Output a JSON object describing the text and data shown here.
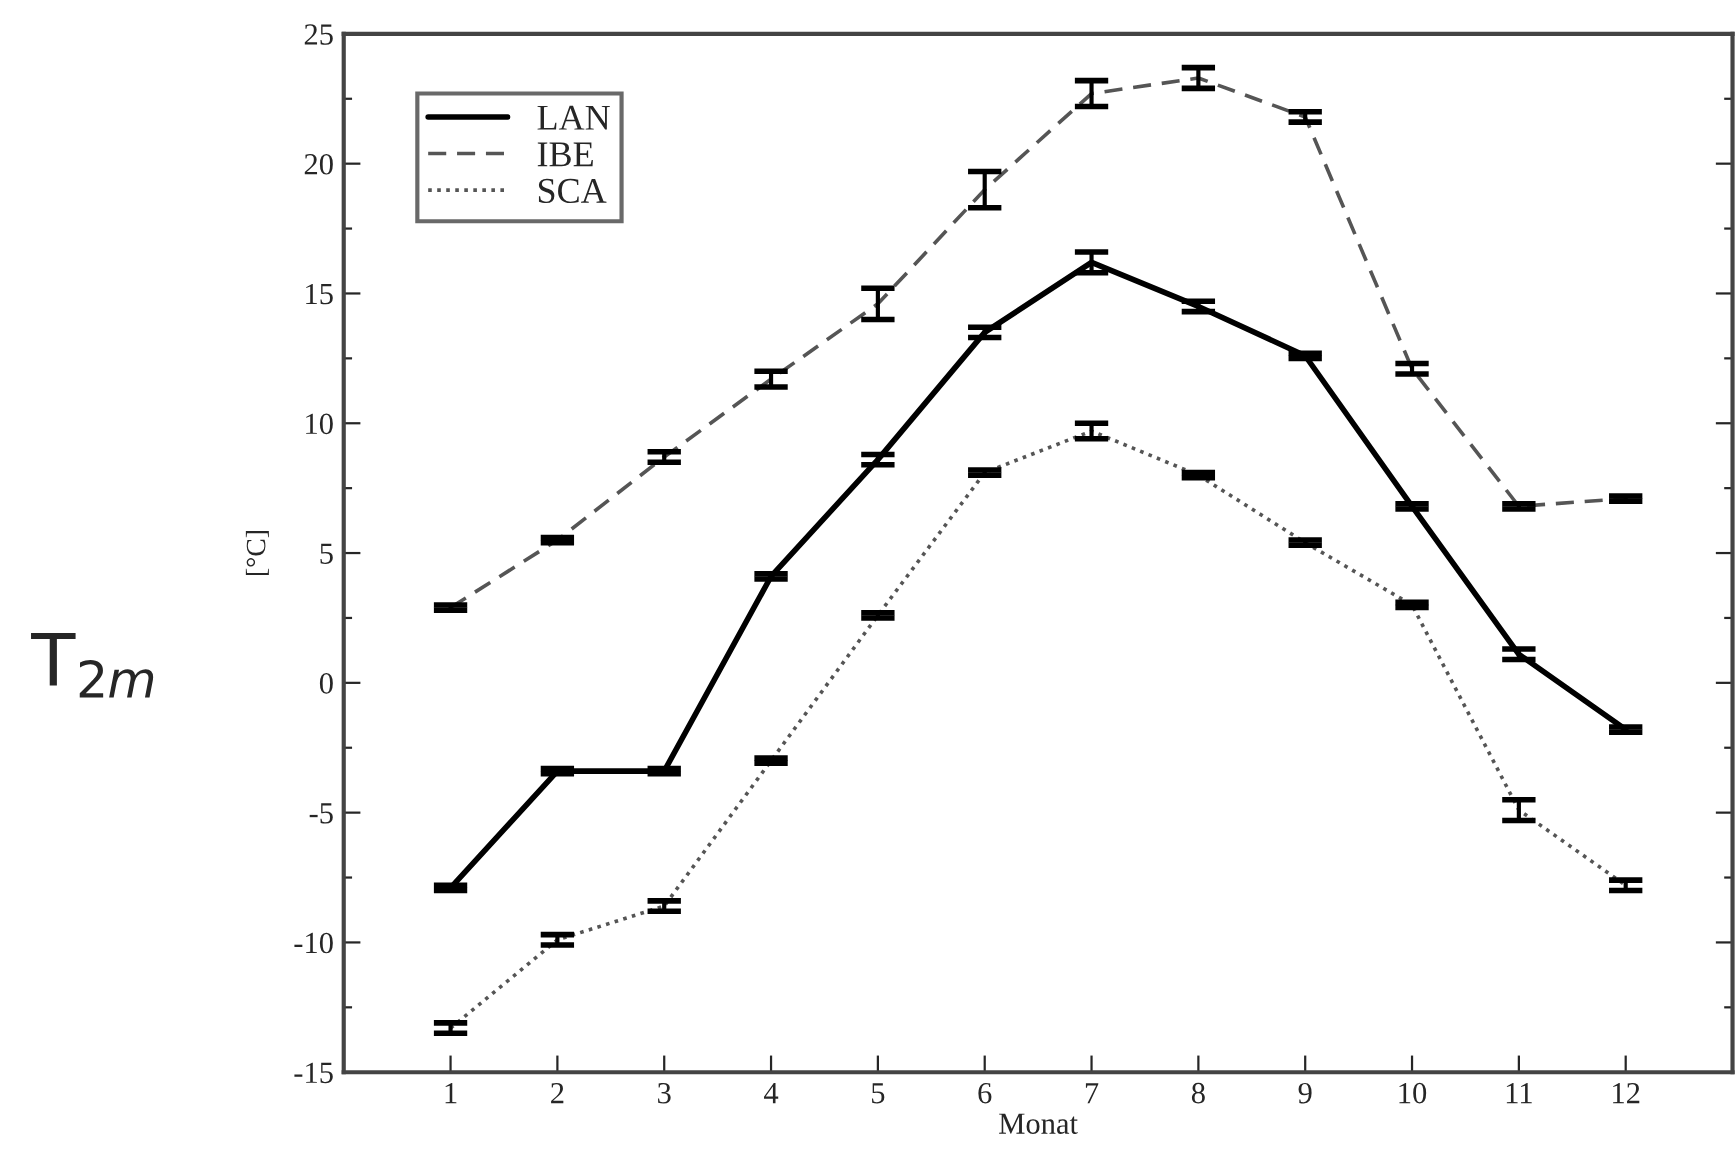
{
  "chart_data": {
    "type": "line",
    "xlabel": "Monat",
    "ylabel": "[°C]",
    "annotations": [
      "T$_{2m}$"
    ],
    "x": [
      1,
      2,
      3,
      4,
      5,
      6,
      7,
      8,
      9,
      10,
      11,
      12
    ],
    "series": [
      {
        "name": "LAN",
        "color": "#000000",
        "line_style": "solid",
        "values": [
          -7.9,
          -3.4,
          -3.4,
          4.1,
          8.6,
          13.5,
          16.2,
          14.5,
          12.6,
          6.8,
          1.1,
          -1.8
        ],
        "errors": [
          0.1,
          0.1,
          0.1,
          0.1,
          0.2,
          0.2,
          0.4,
          0.2,
          0.1,
          0.1,
          0.2,
          0.1
        ]
      },
      {
        "name": "IBE",
        "color": "#555555",
        "line_style": "dashed",
        "values": [
          2.9,
          5.5,
          8.7,
          11.7,
          14.6,
          19.0,
          22.7,
          23.3,
          21.8,
          12.1,
          6.8,
          7.1
        ],
        "errors": [
          0.1,
          0.1,
          0.2,
          0.3,
          0.6,
          0.7,
          0.5,
          0.4,
          0.2,
          0.2,
          0.1,
          0.1
        ]
      },
      {
        "name": "SCA",
        "color": "#555555",
        "line_style": "dotted",
        "values": [
          -13.3,
          -9.9,
          -8.6,
          -3.0,
          2.6,
          8.1,
          9.7,
          8.0,
          5.4,
          3.0,
          -4.9,
          -7.8
        ],
        "errors": [
          0.2,
          0.2,
          0.2,
          0.1,
          0.1,
          0.1,
          0.3,
          0.1,
          0.1,
          0.1,
          0.4,
          0.2
        ]
      }
    ],
    "xlim": [
      0,
      13
    ],
    "xticks": [
      1,
      2,
      3,
      4,
      5,
      6,
      7,
      8,
      9,
      10,
      11,
      12
    ],
    "ylim": [
      -15,
      25
    ],
    "yticks": [
      -15,
      {
        "value": -12.5,
        "label": null
      },
      -10,
      {
        "value": -7.5,
        "label": null
      },
      -5,
      {
        "value": -2.5,
        "label": null
      },
      0,
      {
        "value": 2.5,
        "label": null
      },
      5,
      {
        "value": 7.5,
        "label": null
      },
      10,
      {
        "value": 12.5,
        "label": null
      },
      15,
      {
        "value": 17.5,
        "label": null
      },
      20,
      {
        "value": 22.5,
        "label": null
      },
      25
    ],
    "grid": false,
    "legend": "top left",
    "marker": "none"
  }
}
